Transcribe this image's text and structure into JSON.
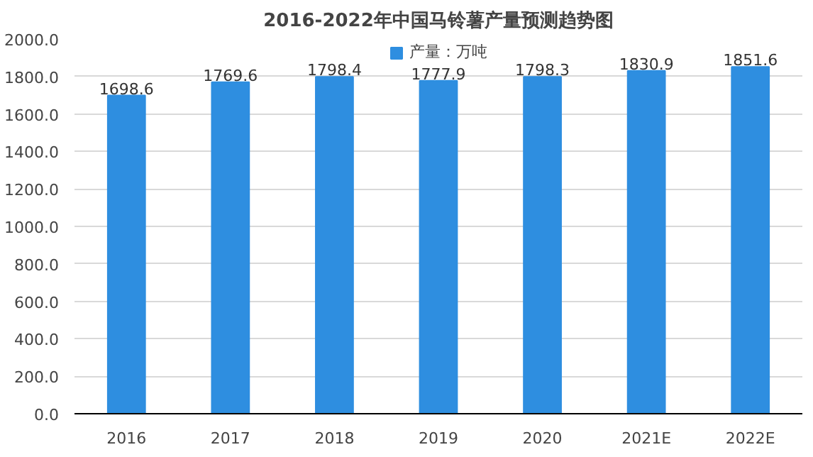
{
  "chart_data": {
    "type": "bar",
    "title": "2016-2022年中国马铃薯产量预测趋势图",
    "categories": [
      "2016",
      "2017",
      "2018",
      "2019",
      "2020",
      "2021E",
      "2022E"
    ],
    "series": [
      {
        "name": "产量：万吨",
        "color": "#2e8ee0",
        "values": [
          1698.6,
          1769.6,
          1798.4,
          1777.9,
          1798.3,
          1830.9,
          1851.6
        ]
      }
    ],
    "ylim": [
      0,
      2000
    ],
    "yticks": [
      {
        "value": 0,
        "label": "0.0"
      },
      {
        "value": 200,
        "label": "200.0"
      },
      {
        "value": 400,
        "label": "400.0"
      },
      {
        "value": 600,
        "label": "600.0"
      },
      {
        "value": 800,
        "label": "800.0"
      },
      {
        "value": 1000,
        "label": "1000.0"
      },
      {
        "value": 1200,
        "label": "1200.0"
      },
      {
        "value": 1400,
        "label": "1400.0"
      },
      {
        "value": 1600,
        "label": "1600.0"
      },
      {
        "value": 1800,
        "label": "1800.0"
      },
      {
        "value": 2000,
        "label": "2000.0"
      }
    ],
    "grid": "y",
    "legend": "top",
    "data_labels": true
  }
}
